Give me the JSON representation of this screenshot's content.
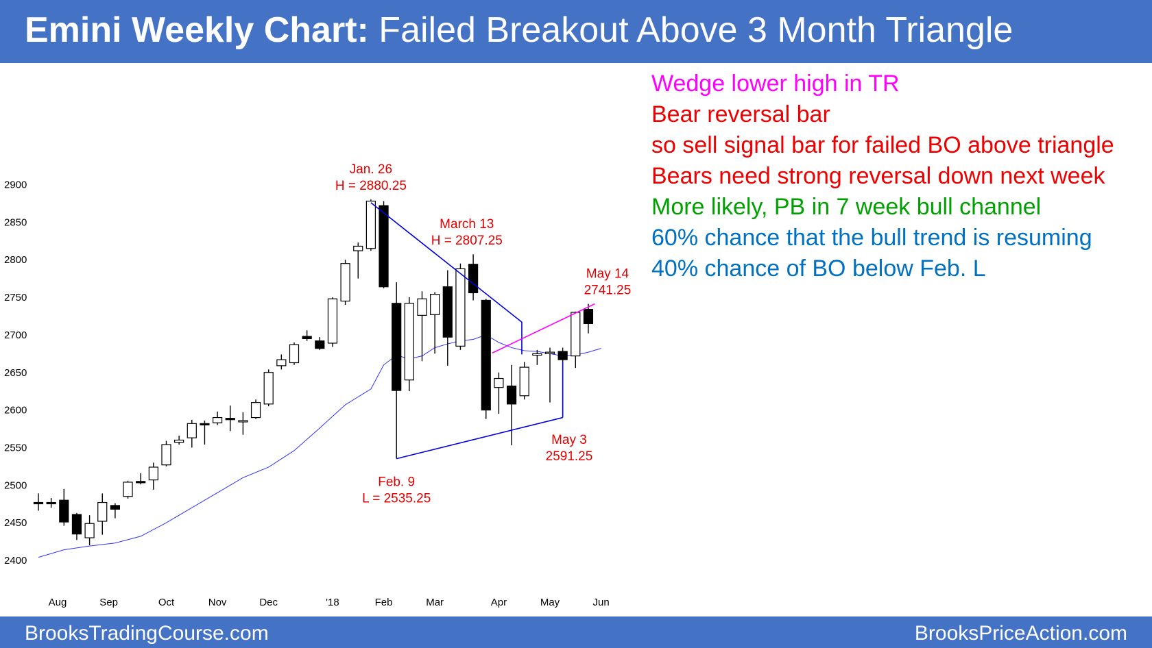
{
  "header": {
    "title_bold": "Emini Weekly Chart:",
    "title_rest": " Failed Breakout Above 3 Month Triangle"
  },
  "footer": {
    "left": "BrooksTradingCourse.com",
    "right": "BrooksPriceAction.com"
  },
  "comments": [
    {
      "text": "Wedge lower high in TR",
      "color": "#ff00ff"
    },
    {
      "text": "Bear reversal bar",
      "color": "#ee0000"
    },
    {
      "text": "so sell signal bar for failed BO above triangle",
      "color": "#ee0000"
    },
    {
      "text": "Bears need strong reversal down next week",
      "color": "#ee0000"
    },
    {
      "text": "More likely, PB in 7 week bull channel",
      "color": "#00a000"
    },
    {
      "text": "60% chance that the bull trend is resuming",
      "color": "#0070c0"
    },
    {
      "text": "40% chance of BO below Feb. L",
      "color": "#0070c0"
    }
  ],
  "chart_data": {
    "type": "candlestick",
    "title": "Emini Weekly Chart",
    "ylim": [
      2400,
      2900
    ],
    "y_ticks": [
      2400,
      2450,
      2500,
      2550,
      2600,
      2650,
      2700,
      2750,
      2800,
      2850,
      2900
    ],
    "x_ticks": [
      {
        "label": "Aug",
        "week": 1.5
      },
      {
        "label": "Sep",
        "week": 5.5
      },
      {
        "label": "Oct",
        "week": 10
      },
      {
        "label": "Nov",
        "week": 14
      },
      {
        "label": "Dec",
        "week": 18
      },
      {
        "label": "'18",
        "week": 23
      },
      {
        "label": "Feb",
        "week": 27
      },
      {
        "label": "Mar",
        "week": 31
      },
      {
        "label": "Apr",
        "week": 36
      },
      {
        "label": "May",
        "week": 40
      },
      {
        "label": "Jun",
        "week": 44
      }
    ],
    "candles": [
      {
        "o": 2477,
        "h": 2489,
        "l": 2466,
        "c": 2477
      },
      {
        "o": 2477,
        "h": 2483,
        "l": 2470,
        "c": 2477
      },
      {
        "o": 2480,
        "h": 2495,
        "l": 2446,
        "c": 2451
      },
      {
        "o": 2461,
        "h": 2463,
        "l": 2427,
        "c": 2435
      },
      {
        "o": 2430,
        "h": 2460,
        "l": 2420,
        "c": 2449
      },
      {
        "o": 2452,
        "h": 2489,
        "l": 2434,
        "c": 2477
      },
      {
        "o": 2473,
        "h": 2476,
        "l": 2456,
        "c": 2468
      },
      {
        "o": 2485,
        "h": 2506,
        "l": 2482,
        "c": 2504
      },
      {
        "o": 2505,
        "h": 2516,
        "l": 2501,
        "c": 2505
      },
      {
        "o": 2507,
        "h": 2530,
        "l": 2494,
        "c": 2524
      },
      {
        "o": 2527,
        "h": 2559,
        "l": 2525,
        "c": 2554
      },
      {
        "o": 2557,
        "h": 2566,
        "l": 2554,
        "c": 2560
      },
      {
        "o": 2563,
        "h": 2587,
        "l": 2550,
        "c": 2582
      },
      {
        "o": 2582,
        "h": 2586,
        "l": 2554,
        "c": 2582
      },
      {
        "o": 2583,
        "h": 2598,
        "l": 2580,
        "c": 2590
      },
      {
        "o": 2589,
        "h": 2606,
        "l": 2572,
        "c": 2589
      },
      {
        "o": 2585,
        "h": 2597,
        "l": 2567,
        "c": 2586
      },
      {
        "o": 2590,
        "h": 2614,
        "l": 2588,
        "c": 2610
      },
      {
        "o": 2608,
        "h": 2654,
        "l": 2605,
        "c": 2650
      },
      {
        "o": 2659,
        "h": 2674,
        "l": 2654,
        "c": 2667
      },
      {
        "o": 2663,
        "h": 2690,
        "l": 2660,
        "c": 2687
      },
      {
        "o": 2698,
        "h": 2706,
        "l": 2692,
        "c": 2695
      },
      {
        "o": 2692,
        "h": 2697,
        "l": 2680,
        "c": 2682
      },
      {
        "o": 2689,
        "h": 2750,
        "l": 2684,
        "c": 2748
      },
      {
        "o": 2745,
        "h": 2800,
        "l": 2740,
        "c": 2795
      },
      {
        "o": 2812,
        "h": 2823,
        "l": 2775,
        "c": 2818
      },
      {
        "o": 2815,
        "h": 2880.25,
        "l": 2812,
        "c": 2878
      },
      {
        "o": 2872,
        "h": 2878,
        "l": 2762,
        "c": 2764
      },
      {
        "o": 2742,
        "h": 2770,
        "l": 2535.25,
        "c": 2626
      },
      {
        "o": 2640,
        "h": 2750,
        "l": 2625,
        "c": 2742
      },
      {
        "o": 2726,
        "h": 2758,
        "l": 2665,
        "c": 2748
      },
      {
        "o": 2727,
        "h": 2757,
        "l": 2675,
        "c": 2754
      },
      {
        "o": 2764,
        "h": 2786,
        "l": 2659,
        "c": 2697
      },
      {
        "o": 2685,
        "h": 2795,
        "l": 2680,
        "c": 2788
      },
      {
        "o": 2794,
        "h": 2807.25,
        "l": 2746,
        "c": 2756
      },
      {
        "o": 2746,
        "h": 2748,
        "l": 2588,
        "c": 2600
      },
      {
        "o": 2630,
        "h": 2650,
        "l": 2595,
        "c": 2642
      },
      {
        "o": 2632,
        "h": 2660,
        "l": 2553,
        "c": 2608
      },
      {
        "o": 2619,
        "h": 2664,
        "l": 2614,
        "c": 2657
      },
      {
        "o": 2673,
        "h": 2680,
        "l": 2660,
        "c": 2675
      },
      {
        "o": 2675,
        "h": 2683,
        "l": 2610,
        "c": 2677
      },
      {
        "o": 2678,
        "h": 2683,
        "l": 2591.25,
        "c": 2667
      },
      {
        "o": 2672,
        "h": 2731,
        "l": 2656,
        "c": 2730
      },
      {
        "o": 2734,
        "h": 2741.25,
        "l": 2702,
        "c": 2715
      }
    ],
    "ma": [
      [
        0,
        2404
      ],
      [
        2,
        2414
      ],
      [
        4,
        2419
      ],
      [
        6,
        2423
      ],
      [
        8,
        2432
      ],
      [
        10,
        2450
      ],
      [
        12,
        2470
      ],
      [
        14,
        2490
      ],
      [
        16,
        2510
      ],
      [
        18,
        2524
      ],
      [
        20,
        2546
      ],
      [
        22,
        2576
      ],
      [
        24,
        2607
      ],
      [
        26,
        2628
      ],
      [
        27,
        2660
      ],
      [
        28,
        2673
      ],
      [
        29,
        2668
      ],
      [
        30,
        2672
      ],
      [
        31,
        2683
      ],
      [
        32,
        2688
      ],
      [
        33,
        2692
      ],
      [
        34,
        2694
      ],
      [
        35,
        2700
      ],
      [
        36,
        2690
      ],
      [
        37,
        2683
      ],
      [
        38,
        2679
      ],
      [
        39,
        2678
      ],
      [
        40,
        2675
      ],
      [
        41,
        2672
      ],
      [
        42,
        2673
      ],
      [
        43,
        2677
      ],
      [
        44,
        2682
      ]
    ],
    "trendlines": [
      {
        "points": [
          [
            26,
            2876
          ],
          [
            37.8,
            2717
          ],
          [
            37.8,
            2674
          ]
        ],
        "color": "#0000dd"
      },
      {
        "points": [
          [
            28,
            2535.25
          ],
          [
            41,
            2590
          ]
        ],
        "color": "#0000dd"
      },
      {
        "points": [
          [
            41,
            2590
          ],
          [
            41,
            2664
          ]
        ],
        "color": "#0000dd"
      },
      {
        "points": [
          [
            35.5,
            2676
          ],
          [
            43.5,
            2741.25
          ]
        ],
        "color": "#ff00ff"
      }
    ],
    "annotations": [
      {
        "lines": [
          "Jan. 26",
          "H = 2880.25"
        ],
        "week": 26,
        "value": 2880.25,
        "pos": "above"
      },
      {
        "lines": [
          "March 13",
          "H = 2807.25"
        ],
        "week": 33.5,
        "value": 2807.25,
        "pos": "above"
      },
      {
        "lines": [
          "May 14",
          "2741.25"
        ],
        "week": 44.5,
        "value": 2741.25,
        "pos": "above"
      },
      {
        "lines": [
          "May 3",
          "2591.25"
        ],
        "week": 41.5,
        "value": 2591.25,
        "pos": "below"
      },
      {
        "lines": [
          "Feb. 9",
          "L = 2535.25"
        ],
        "week": 28,
        "value": 2535.25,
        "pos": "below"
      }
    ]
  }
}
